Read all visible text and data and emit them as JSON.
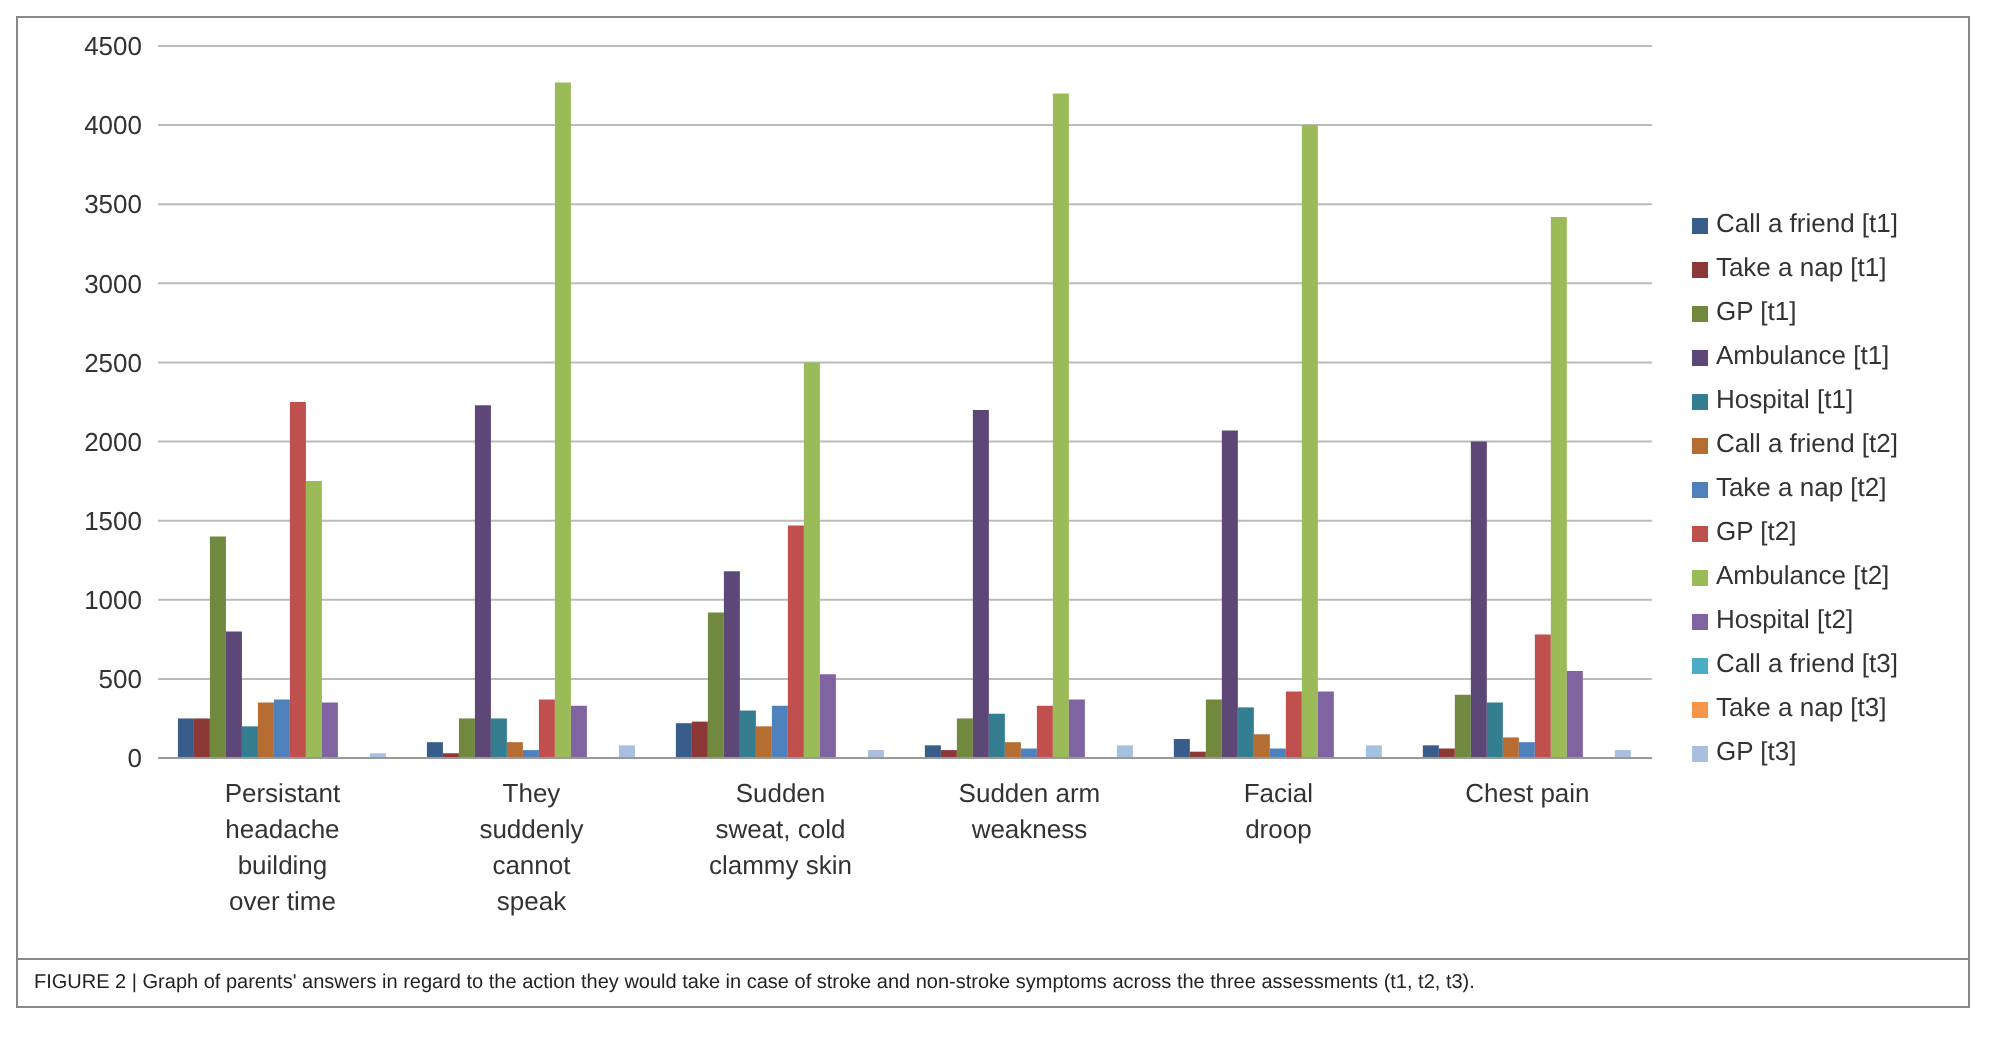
{
  "chart_data": {
    "type": "bar",
    "categories": [
      "Persistant headache building over time",
      "They suddenly cannot speak",
      "Sudden sweat, cold clammy skin",
      "Sudden arm weakness",
      "Facial droop",
      "Chest pain"
    ],
    "series": [
      {
        "name": "Call a friend [t1]",
        "color": "#385d8a",
        "values": [
          250,
          100,
          220,
          80,
          120,
          80
        ]
      },
      {
        "name": "Take a nap [t1]",
        "color": "#8c3836",
        "values": [
          250,
          30,
          230,
          50,
          40,
          60
        ]
      },
      {
        "name": "GP [t1]",
        "color": "#71893f",
        "values": [
          1400,
          250,
          920,
          250,
          370,
          400
        ]
      },
      {
        "name": "Ambulance [t1]",
        "color": "#5c4776",
        "values": [
          800,
          2230,
          1180,
          2200,
          2070,
          2000
        ]
      },
      {
        "name": "Hospital [t1]",
        "color": "#357d91",
        "values": [
          200,
          250,
          300,
          280,
          320,
          350
        ]
      },
      {
        "name": "Call a friend [t2]",
        "color": "#b66d31",
        "values": [
          350,
          100,
          200,
          100,
          150,
          130
        ]
      },
      {
        "name": "Take a nap [t2]",
        "color": "#4f81bd",
        "values": [
          370,
          50,
          330,
          60,
          60,
          100
        ]
      },
      {
        "name": "GP [t2]",
        "color": "#c0504d",
        "values": [
          2250,
          370,
          1470,
          330,
          420,
          780
        ]
      },
      {
        "name": "Ambulance [t2]",
        "color": "#9bbb59",
        "values": [
          1750,
          4270,
          2500,
          4200,
          4000,
          3420
        ]
      },
      {
        "name": "Hospital [t2]",
        "color": "#8064a2",
        "values": [
          350,
          330,
          530,
          370,
          420,
          550
        ]
      },
      {
        "name": "Call a friend [t3]",
        "color": "#4bacc6",
        "values": [
          0,
          0,
          0,
          0,
          0,
          0
        ]
      },
      {
        "name": "Take a nap [t3]",
        "color": "#f79646",
        "values": [
          0,
          0,
          0,
          0,
          0,
          0
        ]
      },
      {
        "name": "GP [t3]",
        "color": "#a7c0de",
        "values": [
          30,
          80,
          50,
          80,
          80,
          50
        ]
      }
    ],
    "ylim": [
      0,
      4500
    ],
    "yticks": [
      0,
      500,
      1000,
      1500,
      2000,
      2500,
      3000,
      3500,
      4000,
      4500
    ],
    "grid": "y",
    "legend": "right",
    "annotations": [
      "FIGURE 2 | Graph of parents' answers in regard to the action they would take in case of stroke and non-stroke symptoms across the three assessments (t1, t2, t3)."
    ]
  }
}
